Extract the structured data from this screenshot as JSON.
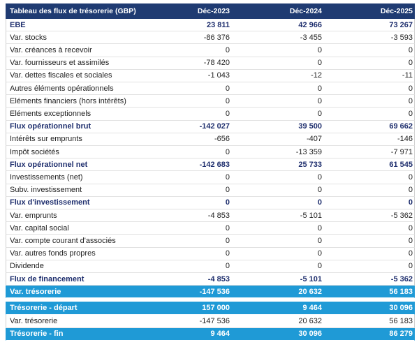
{
  "table": {
    "header": [
      "Tableau des flux de trésorerie (GBP)",
      "Déc-2023",
      "Déc-2024",
      "Déc-2025"
    ],
    "rows": [
      [
        "EBE",
        "23 811",
        "42 966",
        "73 267"
      ],
      [
        "Var. stocks",
        "-86 376",
        "-3 455",
        "-3 593"
      ],
      [
        "Var. créances à recevoir",
        "0",
        "0",
        "0"
      ],
      [
        "Var. fournisseurs et assimilés",
        "-78 420",
        "0",
        "0"
      ],
      [
        "Var. dettes fiscales et sociales",
        "-1 043",
        "-12",
        "-11"
      ],
      [
        "Autres éléments opérationnels",
        "0",
        "0",
        "0"
      ],
      [
        "Eléments financiers (hors intérêts)",
        "0",
        "0",
        "0"
      ],
      [
        "Eléments exceptionnels",
        "0",
        "0",
        "0"
      ],
      [
        "Flux opérationnel brut",
        "-142 027",
        "39 500",
        "69 662"
      ],
      [
        "Intérêts sur emprunts",
        "-656",
        "-407",
        "-146"
      ],
      [
        "Impôt sociétés",
        "0",
        "-13 359",
        "-7 971"
      ],
      [
        "Flux opérationnel net",
        "-142 683",
        "25 733",
        "61 545"
      ],
      [
        "Investissements (net)",
        "0",
        "0",
        "0"
      ],
      [
        "Subv. investissement",
        "0",
        "0",
        "0"
      ],
      [
        "Flux d'investissement",
        "0",
        "0",
        "0"
      ],
      [
        "Var. emprunts",
        "-4 853",
        "-5 101",
        "-5 362"
      ],
      [
        "Var. capital social",
        "0",
        "0",
        "0"
      ],
      [
        "Var. compte courant d'associés",
        "0",
        "0",
        "0"
      ],
      [
        "Var. autres fonds propres",
        "0",
        "0",
        "0"
      ],
      [
        "Dividende",
        "0",
        "0",
        "0"
      ],
      [
        "Flux de financement",
        "-4 853",
        "-5 101",
        "-5 362"
      ],
      [
        "Var. trésorerie",
        "-147 536",
        "20 632",
        "56 183"
      ]
    ],
    "summary_rows": [
      [
        "Trésorerie - départ",
        "157 000",
        "9 464",
        "30 096"
      ],
      [
        "Var. trésorerie",
        "-147 536",
        "20 632",
        "56 183"
      ],
      [
        "Trésorerie - fin",
        "9 464",
        "30 096",
        "86 279"
      ]
    ]
  }
}
